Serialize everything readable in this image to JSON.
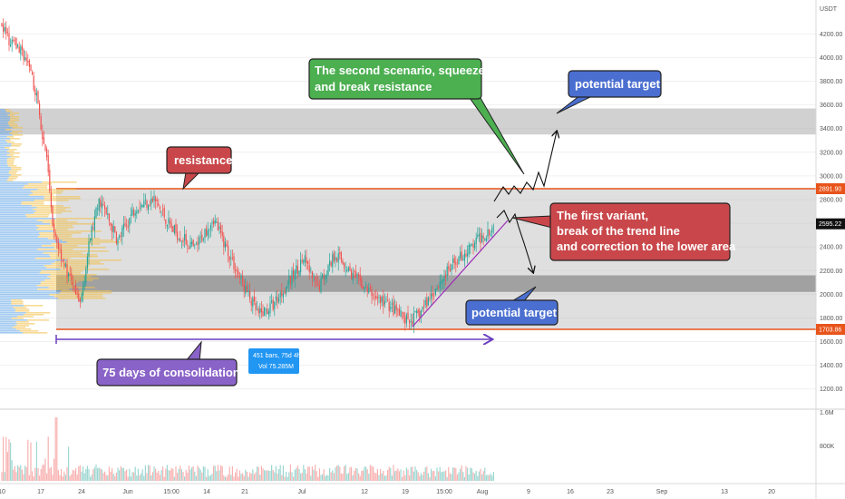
{
  "chart_data": {
    "type": "candlestick",
    "symbol_unit": "USDT",
    "y_axis": {
      "range": [
        1020,
        4520
      ],
      "ticks": [
        1200,
        1400,
        1600,
        1800,
        2000,
        2200,
        2400,
        2600,
        2800,
        3000,
        3200,
        3400,
        3600,
        3800,
        4000,
        4200
      ],
      "tick_labels": [
        "1200.00",
        "1400.00",
        "1600.00",
        "1800.00",
        "2000.00",
        "2200.00",
        "2400.00",
        "2600.00",
        "2800.00",
        "3000.00",
        "3200.00",
        "3400.00",
        "3600.00",
        "3800.00",
        "4000.00",
        "4200.00"
      ],
      "price_tags": [
        {
          "value": 2891.9,
          "label": "2891.90",
          "color": "#e8541a"
        },
        {
          "value": 2595.22,
          "label": "2595.22",
          "color": "#111111"
        },
        {
          "value": 1703.86,
          "label": "1703.86",
          "color": "#e8541a"
        }
      ]
    },
    "x_axis": {
      "tick_labels": [
        "10",
        "17",
        "24",
        "Jun",
        "15:00",
        "14",
        "21",
        "Jul",
        "12",
        "19",
        "15:00",
        "Aug",
        "9",
        "16",
        "23",
        "Sep",
        "13",
        "20"
      ]
    },
    "volume_axis": {
      "tick_labels": [
        "1.6M",
        "800K"
      ]
    },
    "zones": [
      {
        "name": "upper-resistance-zone",
        "from": 3350,
        "to": 3570
      },
      {
        "name": "consolidation-range",
        "from": 1703.86,
        "to": 2891.9
      },
      {
        "name": "lower-support-zone",
        "from": 2020,
        "to": 2160
      }
    ],
    "levels": [
      {
        "name": "resistance-line",
        "value": 2891.9,
        "color": "#e8541a"
      },
      {
        "name": "support-line",
        "value": 1703.86,
        "color": "#e8541a"
      }
    ],
    "annotations": [
      {
        "text": "resistance",
        "color": "#c9474a"
      },
      {
        "text": "The second scenario, squeeze\nand break resistance",
        "color": "#4caf50"
      },
      {
        "text": "potential target",
        "color": "#4a6fd0"
      },
      {
        "text": "The first variant,\nbreak of the trend line\nand correction to the lower area",
        "color": "#c9474a"
      },
      {
        "text": "potential target",
        "color": "#4a6fd0"
      },
      {
        "text": "75 days of consolidation",
        "color": "#8a63c8"
      }
    ],
    "range_info": {
      "line1": "451 bars, 75d 4h",
      "line2": "Vol 75.285M"
    }
  },
  "colors": {
    "up": "#26a69a",
    "down": "#ef5350",
    "resistance": "#e8541a",
    "trendline": "#9b2fb8",
    "profile_blue": "#5aa0e6",
    "profile_yellow": "#f2c14e",
    "measure": "#6a3fbf"
  }
}
